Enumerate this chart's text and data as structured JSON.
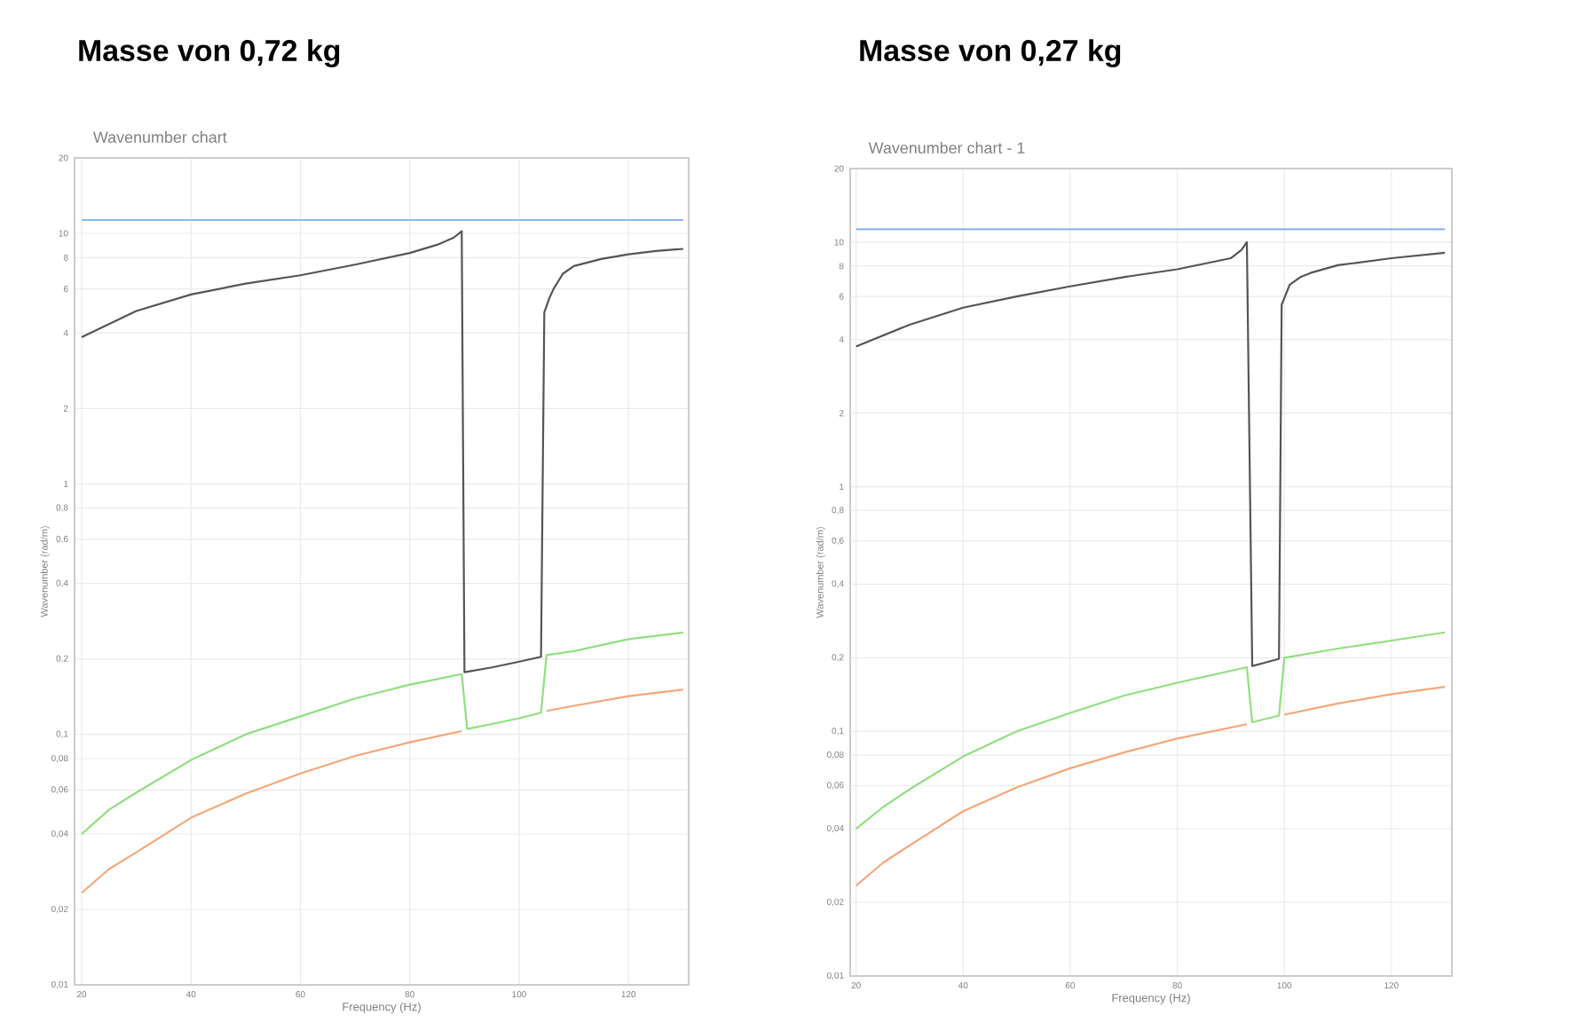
{
  "chart_data": [
    {
      "type": "line",
      "title": "Masse von 0,72 kg",
      "subtitle": "Wavenumber chart",
      "xlabel": "Frequency (Hz)",
      "ylabel": "Wavenumber (rad/m)",
      "log": "y",
      "grid": true,
      "marker": "none",
      "line_style": "solid",
      "xlim": [
        18.7,
        131
      ],
      "ylim": [
        0.01,
        20
      ],
      "xticks": [
        20,
        40,
        60,
        80,
        100,
        120
      ],
      "yticks": [
        {
          "value": 0.01,
          "label": "0,01"
        },
        {
          "value": 0.02,
          "label": "0,02"
        },
        {
          "value": 0.04,
          "label": "0,04"
        },
        {
          "value": 0.06,
          "label": "0,06"
        },
        {
          "value": 0.08,
          "label": "0,08"
        },
        {
          "value": 0.1,
          "label": "0,1"
        },
        {
          "value": 0.2,
          "label": "0,2"
        },
        {
          "value": 0.4,
          "label": "0,4"
        },
        {
          "value": 0.6,
          "label": "0,6"
        },
        {
          "value": 0.8,
          "label": "0,8"
        },
        1,
        2,
        4,
        6,
        8,
        10,
        20
      ],
      "series": [
        {
          "color": "#8db8e8",
          "x": [
            20,
            130
          ],
          "values": [
            11.3,
            11.3
          ]
        },
        {
          "color": "#555555",
          "x": [
            20,
            30,
            40,
            50,
            60,
            70,
            80,
            85,
            88,
            89.5,
            90,
            95,
            100,
            104,
            104.6,
            105.5,
            106.3,
            108,
            110,
            115,
            120,
            125,
            130
          ],
          "values": [
            3.85,
            4.9,
            5.7,
            6.3,
            6.8,
            7.5,
            8.35,
            9.0,
            9.6,
            10.2,
            0.177,
            0.185,
            0.195,
            0.204,
            4.83,
            5.5,
            6.0,
            6.9,
            7.4,
            7.9,
            8.25,
            8.5,
            8.67
          ]
        },
        {
          "color": "#90e080",
          "x": [
            20,
            25,
            30,
            40,
            50,
            60,
            70,
            80,
            89.5,
            90.5,
            95,
            100,
            104,
            105,
            110,
            120,
            130
          ],
          "values": [
            0.04,
            0.05,
            0.0586,
            0.079,
            0.1,
            0.118,
            0.139,
            0.158,
            0.174,
            0.105,
            0.11,
            0.116,
            0.122,
            0.207,
            0.215,
            0.24,
            0.255
          ]
        },
        {
          "color": "#f4a878",
          "x": [
            20,
            25,
            30,
            40,
            50,
            60,
            70,
            80,
            89.5,
            95,
            105,
            110,
            120,
            130
          ],
          "values": [
            0.0233,
            0.029,
            0.0338,
            0.0465,
            0.058,
            0.0698,
            0.082,
            0.093,
            0.103,
            null,
            0.124,
            0.13,
            0.142,
            0.151
          ]
        }
      ]
    },
    {
      "type": "line",
      "title": "Masse von 0,27 kg",
      "subtitle": "Wavenumber chart - 1",
      "xlabel": "Frequency (Hz)",
      "ylabel": "Wavenumber (rad/m)",
      "log": "y",
      "grid": true,
      "marker": "none",
      "line_style": "solid",
      "xlim": [
        18.9,
        131.3
      ],
      "ylim": [
        0.01,
        20
      ],
      "xticks": [
        20,
        40,
        60,
        80,
        100,
        120
      ],
      "yticks": [
        {
          "value": 0.01,
          "label": "0,01"
        },
        {
          "value": 0.02,
          "label": "0,02"
        },
        {
          "value": 0.04,
          "label": "0,04"
        },
        {
          "value": 0.06,
          "label": "0,06"
        },
        {
          "value": 0.08,
          "label": "0,08"
        },
        {
          "value": 0.1,
          "label": "0,1"
        },
        {
          "value": 0.2,
          "label": "0,2"
        },
        {
          "value": 0.4,
          "label": "0,4"
        },
        {
          "value": 0.6,
          "label": "0,6"
        },
        {
          "value": 0.8,
          "label": "0,8"
        },
        1,
        2,
        4,
        6,
        8,
        10,
        20
      ],
      "series": [
        {
          "color": "#8db8e8",
          "x": [
            20,
            130
          ],
          "values": [
            11.3,
            11.3
          ]
        },
        {
          "color": "#555555",
          "x": [
            20,
            30,
            40,
            50,
            60,
            70,
            80,
            90,
            92,
            93,
            94,
            96,
            99,
            99.5,
            101,
            103,
            105,
            110,
            120,
            130
          ],
          "values": [
            3.75,
            4.6,
            5.4,
            6.0,
            6.6,
            7.2,
            7.75,
            8.6,
            9.3,
            10.0,
            0.185,
            0.19,
            0.198,
            5.55,
            6.7,
            7.2,
            7.5,
            8.05,
            8.6,
            9.05
          ]
        },
        {
          "color": "#90e080",
          "x": [
            20,
            25,
            30,
            40,
            50,
            60,
            70,
            80,
            93,
            94,
            99,
            100,
            110,
            120,
            130
          ],
          "values": [
            0.04,
            0.049,
            0.058,
            0.079,
            0.1,
            0.119,
            0.14,
            0.158,
            0.183,
            0.109,
            0.116,
            0.2,
            0.218,
            0.235,
            0.254
          ]
        },
        {
          "color": "#f4a878",
          "x": [
            20,
            25,
            30,
            40,
            50,
            60,
            70,
            80,
            93,
            96,
            100,
            110,
            120,
            130
          ],
          "values": [
            0.0234,
            0.029,
            0.0342,
            0.0472,
            0.059,
            0.0707,
            0.082,
            0.0935,
            0.107,
            null,
            0.117,
            0.13,
            0.142,
            0.152
          ]
        }
      ]
    }
  ]
}
